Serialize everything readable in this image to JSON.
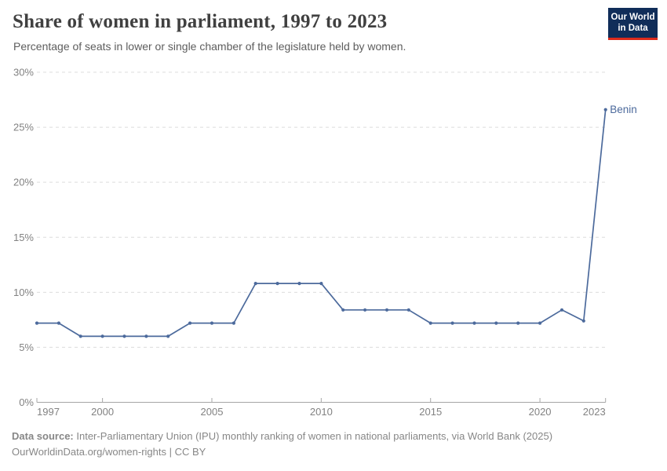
{
  "header": {
    "title": "Share of women in parliament, 1997 to 2023",
    "subtitle": "Percentage of seats in lower or single chamber of the legislature held by women."
  },
  "logo": {
    "line1": "Our World",
    "line2": "in Data",
    "bg_color": "#102d59",
    "stripe_color": "#dd2b1c"
  },
  "chart_data": {
    "type": "line",
    "title": "Share of women in parliament, 1997 to 2023",
    "x": [
      1997,
      1998,
      1999,
      2000,
      2001,
      2002,
      2003,
      2004,
      2005,
      2006,
      2007,
      2008,
      2009,
      2010,
      2011,
      2012,
      2013,
      2014,
      2015,
      2016,
      2017,
      2018,
      2019,
      2020,
      2021,
      2022,
      2023
    ],
    "series": [
      {
        "name": "Benin",
        "color": "#4c6a9c",
        "values": [
          7.2,
          7.2,
          6.0,
          6.0,
          6.0,
          6.0,
          6.0,
          7.2,
          7.2,
          7.2,
          10.8,
          10.8,
          10.8,
          10.8,
          8.4,
          8.4,
          8.4,
          8.4,
          7.2,
          7.2,
          7.2,
          7.2,
          7.2,
          7.2,
          8.4,
          7.4,
          26.6
        ]
      }
    ],
    "xlabel": "",
    "ylabel": "",
    "ylim": [
      0,
      30
    ],
    "yticks": [
      0,
      5,
      10,
      15,
      20,
      25,
      30
    ],
    "ytick_suffix": "%",
    "xticks": [
      1997,
      2000,
      2005,
      2010,
      2015,
      2020,
      2023
    ],
    "grid": "horizontal-dashed",
    "legend_position": "end-of-line-label",
    "end_label": "Benin",
    "colors": {
      "line": "#4c6a9c",
      "grid": "#dcdcdc",
      "axis": "#a6a6a6",
      "tick_label": "#828282"
    }
  },
  "footer": {
    "source_label": "Data source:",
    "source_text": " Inter-Parliamentary Union (IPU) monthly ranking of women in national parliaments, via World Bank (2025)",
    "license_line": "OurWorldinData.org/women-rights | CC BY"
  }
}
